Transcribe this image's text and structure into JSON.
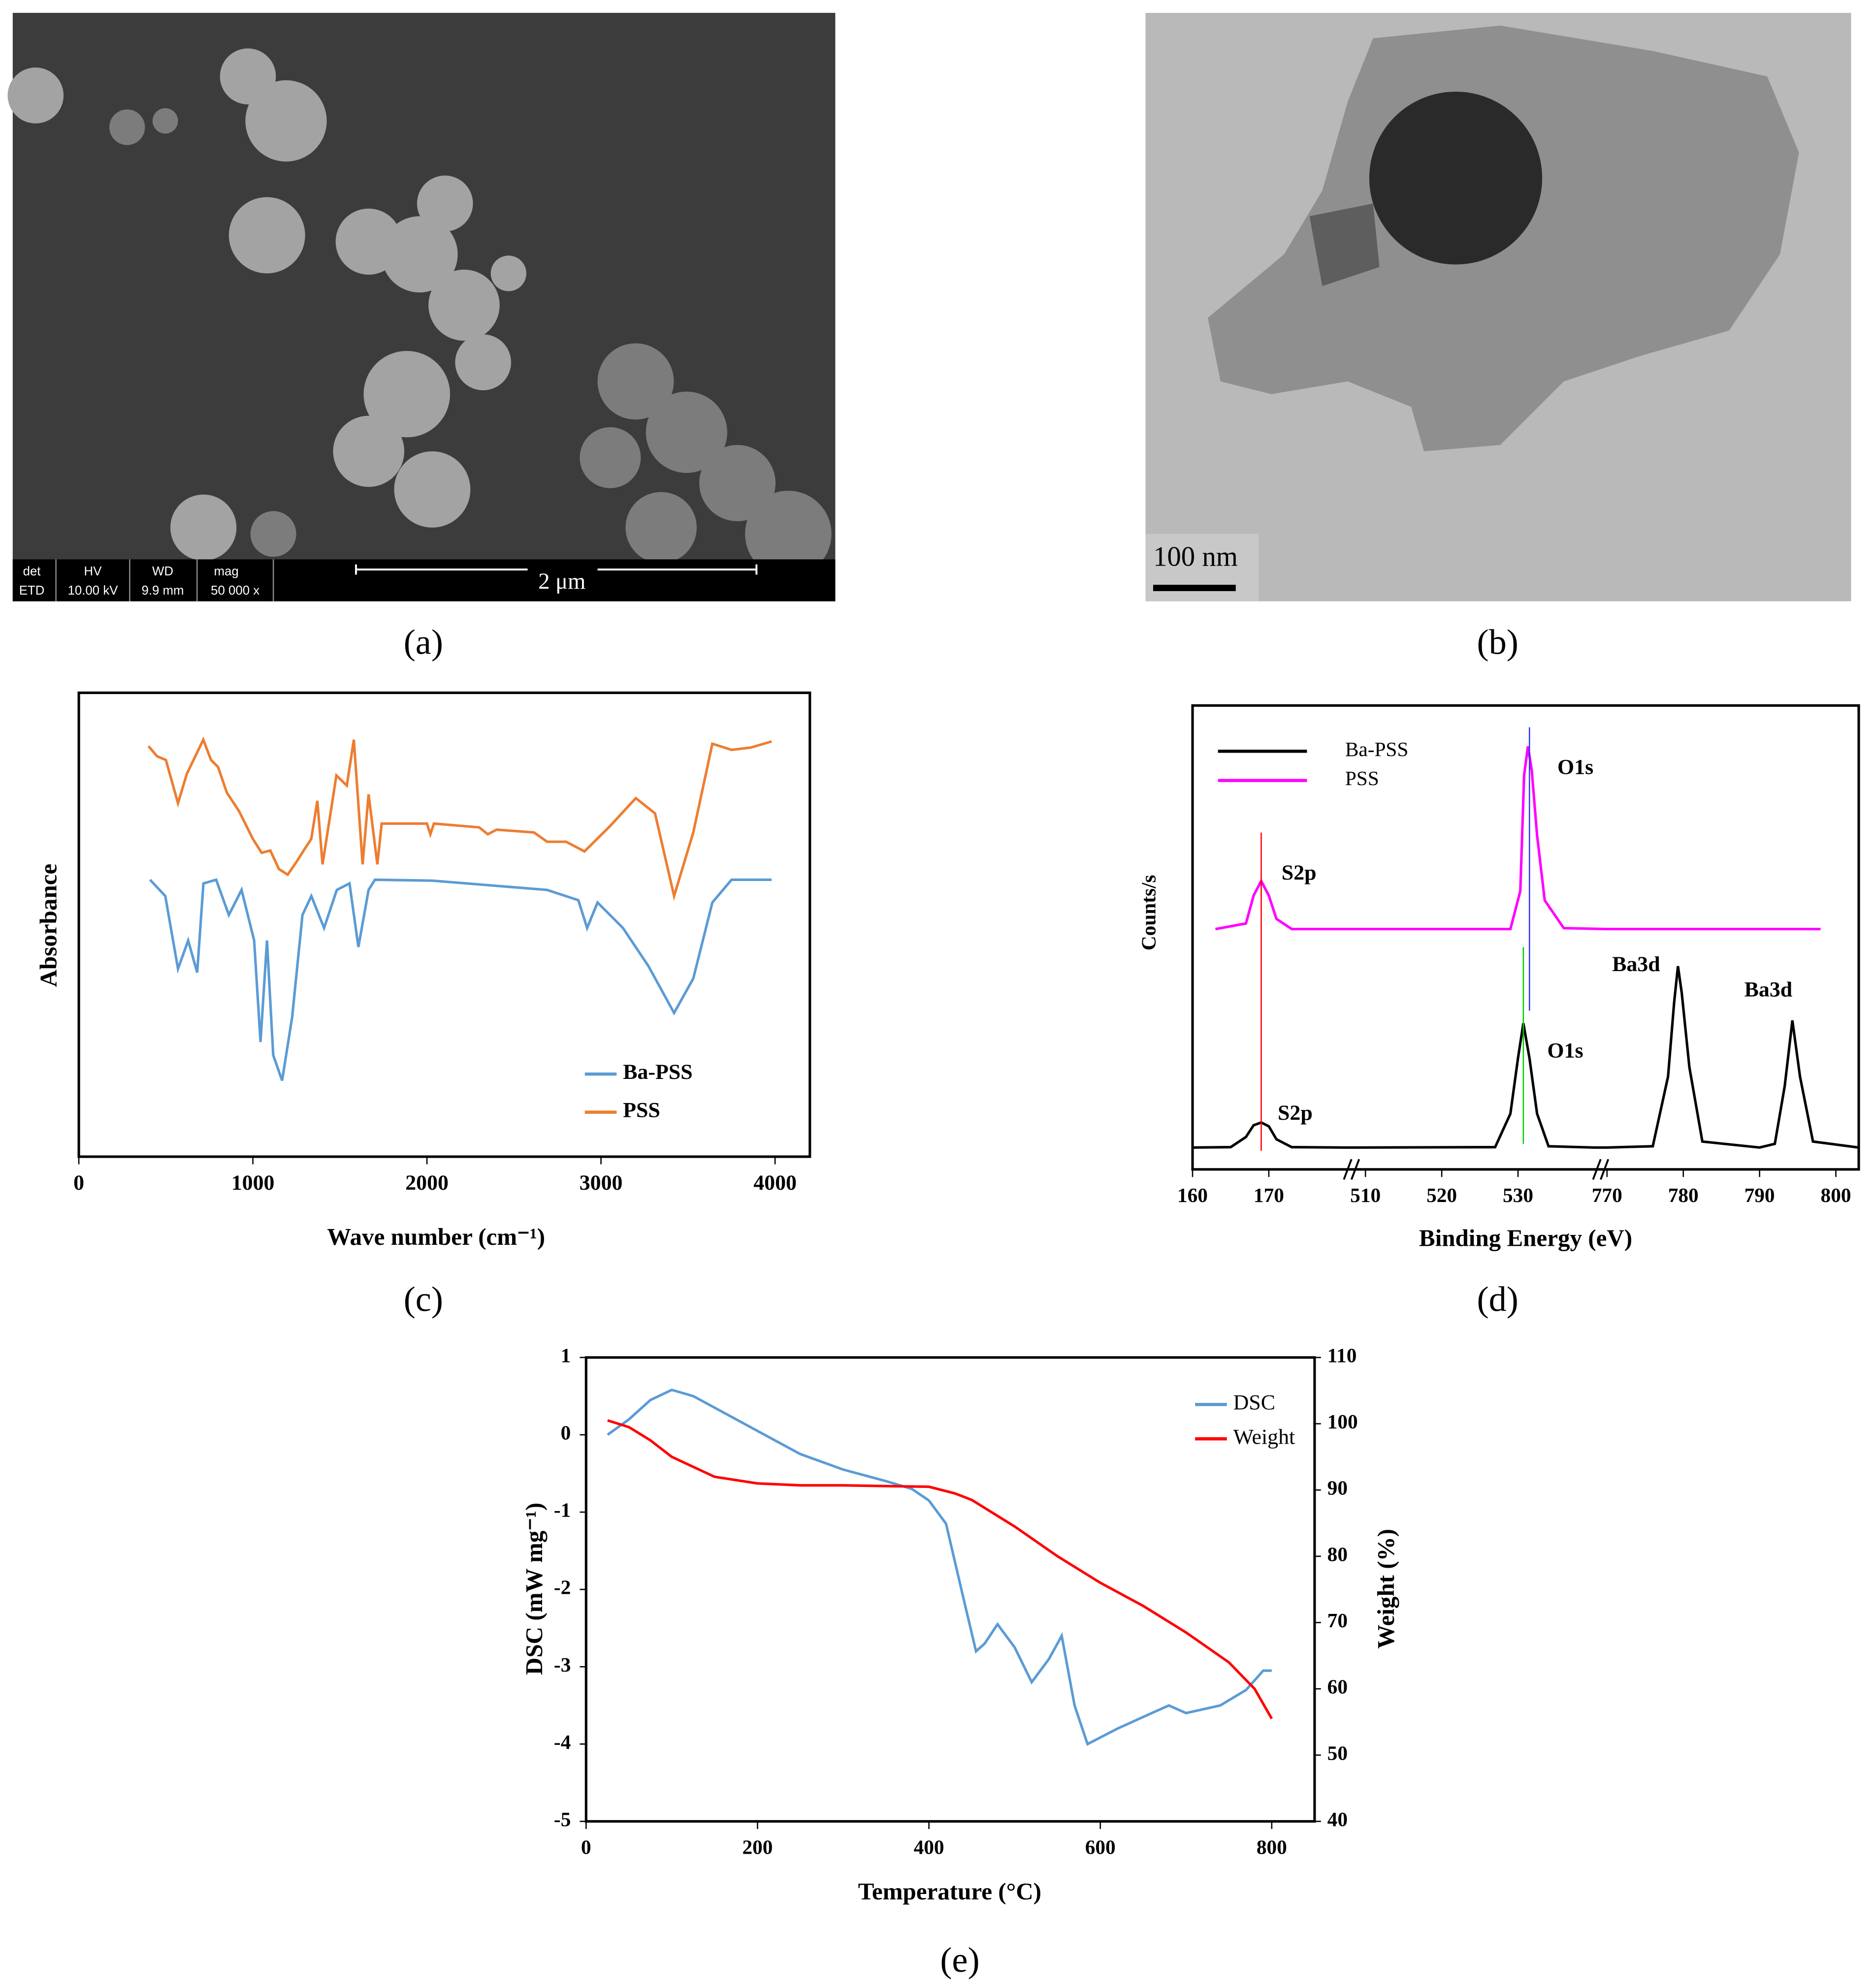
{
  "panel_labels": [
    "(a)",
    "(b)",
    "(c)",
    "(d)",
    "(e)"
  ],
  "images": {
    "a": {
      "info_headers": [
        "det",
        "HV",
        "WD",
        "mag"
      ],
      "info_values": [
        "ETD",
        "10.00 kV",
        "9.9 mm",
        "50 000 x"
      ],
      "scale_bar": "2 μm"
    },
    "b": {
      "scale_bar": "100 nm"
    }
  },
  "chart_data": [
    {
      "type": "line",
      "xlabel": "Wave number (cm⁻¹)",
      "ylabel": "Absorbance",
      "xlim": [
        0,
        4200
      ],
      "xticks": [
        0,
        1000,
        2000,
        3000,
        4000
      ],
      "ylim": [
        0,
        100
      ],
      "legend": "lower right",
      "series": [
        {
          "name": "Ba-PSS",
          "color": "#5b9bd5",
          "x": [
            409,
            497,
            570,
            628,
            680,
            716,
            789,
            862,
            935,
            1007,
            1044,
            1081,
            1117,
            1168,
            1226,
            1285,
            1336,
            1409,
            1482,
            1555,
            1606,
            1665,
            1701,
            2030,
            2690,
            2870,
            2920,
            2980,
            3126,
            3272,
            3420,
            3530,
            3640,
            3750,
            3980
          ],
          "values": [
            59.7,
            56.2,
            40.5,
            46.6,
            39.7,
            58.9,
            59.7,
            52.1,
            57.5,
            46.6,
            24.7,
            46.6,
            21.9,
            16.4,
            30.1,
            52.1,
            56.2,
            49.3,
            57.5,
            58.9,
            45.2,
            57.5,
            59.7,
            59.5,
            57.5,
            55.3,
            49.3,
            54.8,
            49.3,
            41.1,
            31.0,
            38.4,
            54.8,
            59.7,
            59.7
          ]
        },
        {
          "name": "PSS",
          "color": "#ed7d31",
          "x": [
            400,
            450,
            500,
            570,
            620,
            715,
            760,
            800,
            850,
            920,
            1000,
            1050,
            1100,
            1150,
            1200,
            1250,
            1300,
            1335,
            1370,
            1400,
            1480,
            1540,
            1580,
            1630,
            1665,
            1715,
            1740,
            2000,
            2020,
            2040,
            2300,
            2350,
            2400,
            2615,
            2690,
            2800,
            2905,
            3050,
            3200,
            3310,
            3420,
            3530,
            3640,
            3750,
            3860,
            3980
          ],
          "values": [
            88.5,
            86.3,
            85.5,
            76.2,
            82.5,
            89.9,
            85.5,
            84.0,
            78.5,
            74.5,
            68.5,
            65.5,
            66.0,
            62.0,
            60.8,
            63.5,
            66.5,
            68.5,
            76.7,
            63.0,
            82.2,
            80.0,
            89.9,
            63.0,
            78.1,
            63.0,
            71.8,
            71.8,
            69.5,
            71.8,
            71.0,
            69.5,
            70.5,
            69.9,
            67.9,
            67.9,
            65.8,
            71.2,
            77.3,
            74.0,
            56.2,
            69.9,
            89.0,
            87.7,
            88.2,
            89.5
          ]
        }
      ]
    },
    {
      "type": "line",
      "xlabel": "Binding Energy (eV)",
      "ylabel": "Counts/s",
      "xsegments": [
        [
          160,
          180
        ],
        [
          509,
          540
        ],
        [
          770,
          803
        ]
      ],
      "xticks": [
        160,
        170,
        510,
        520,
        530,
        770,
        780,
        790,
        800
      ],
      "ylim": [
        0,
        100
      ],
      "legend": "upper left",
      "series": [
        {
          "name": "Ba-PSS",
          "color": "#000000",
          "x": [
            160,
            165,
            167,
            168,
            169,
            170,
            171,
            173,
            180,
            509,
            527,
            529,
            530,
            530.7,
            531.5,
            532.5,
            534,
            540,
            770,
            776,
            778,
            778.8,
            779.3,
            779.8,
            780.8,
            782.5,
            790,
            792,
            793.3,
            794.3,
            795.3,
            797,
            803
          ],
          "values": [
            4.7,
            4.8,
            7,
            9.5,
            10.1,
            9.3,
            6.5,
            4.8,
            4.7,
            4.7,
            4.8,
            12,
            24,
            31.5,
            24,
            12,
            5,
            4.7,
            4.7,
            5,
            20,
            36,
            43.8,
            38,
            22,
            6,
            4.7,
            5.5,
            18,
            32.1,
            20,
            6,
            4.7
          ]
        },
        {
          "name": "PSS",
          "color": "#ff00ff",
          "x": [
            163,
            167,
            168,
            169,
            170,
            171,
            173,
            180,
            509,
            529,
            530.3,
            530.8,
            531.3,
            531.8,
            532.5,
            533.5,
            536,
            770,
            798
          ],
          "values": [
            51.8,
            53,
            59,
            62.2,
            59,
            54,
            51.8,
            51.8,
            51.8,
            51.8,
            60,
            85,
            91.2,
            86,
            72,
            58,
            52,
            51.8,
            51.8
          ]
        }
      ],
      "vlines": [
        {
          "x": 169,
          "y": [
            4,
            72.6
          ],
          "color": "#ff0000"
        },
        {
          "x": 530.7,
          "y": [
            5.5,
            47.9
          ],
          "color": "#00cc00"
        },
        {
          "x": 531.5,
          "y": [
            34.2,
            95.3
          ],
          "color": "#3333ff"
        }
      ],
      "annotations": [
        "S2p",
        "O1s",
        "S2p",
        "O1s",
        "Ba3d",
        "Ba3d"
      ]
    },
    {
      "type": "line",
      "xlabel": "Temperature (°C)",
      "ylabel": "DSC (mW mg⁻¹)",
      "y2label": "Weight (%)",
      "xlim": [
        0,
        850
      ],
      "xticks": [
        0,
        200,
        400,
        600,
        800
      ],
      "ylim": [
        -5,
        1
      ],
      "yticks": [
        -5,
        -4,
        -3,
        -2,
        -1,
        0,
        1
      ],
      "y2lim": [
        40,
        110
      ],
      "y2ticks": [
        40,
        50,
        60,
        70,
        80,
        90,
        100,
        110
      ],
      "legend": "upper right",
      "series": [
        {
          "name": "DSC",
          "color": "#5b9bd5",
          "x": [
            25,
            50,
            75,
            100,
            125,
            150,
            200,
            250,
            300,
            350,
            380,
            400,
            420,
            440,
            455,
            465,
            480,
            500,
            520,
            540,
            555,
            570,
            585,
            620,
            660,
            680,
            700,
            740,
            770,
            790,
            800
          ],
          "values": [
            0,
            0.2,
            0.45,
            0.58,
            0.5,
            0.35,
            0.05,
            -0.25,
            -0.45,
            -0.6,
            -0.7,
            -0.85,
            -1.15,
            -2.1,
            -2.8,
            -2.7,
            -2.45,
            -2.75,
            -3.2,
            -2.9,
            -2.6,
            -3.5,
            -4.0,
            -3.8,
            -3.6,
            -3.5,
            -3.6,
            -3.5,
            -3.3,
            -3.05,
            -3.05
          ]
        },
        {
          "name": "Weight",
          "color": "#ff0000",
          "axis": "y2",
          "x": [
            25,
            50,
            75,
            100,
            150,
            200,
            250,
            300,
            350,
            400,
            430,
            450,
            500,
            550,
            600,
            650,
            700,
            750,
            780,
            800
          ],
          "values": [
            100.5,
            99.5,
            97.5,
            95,
            92,
            91,
            90.7,
            90.7,
            90.6,
            90.5,
            89.5,
            88.5,
            84.5,
            80,
            76,
            72.5,
            68.5,
            64,
            60,
            55.5
          ]
        }
      ]
    }
  ]
}
